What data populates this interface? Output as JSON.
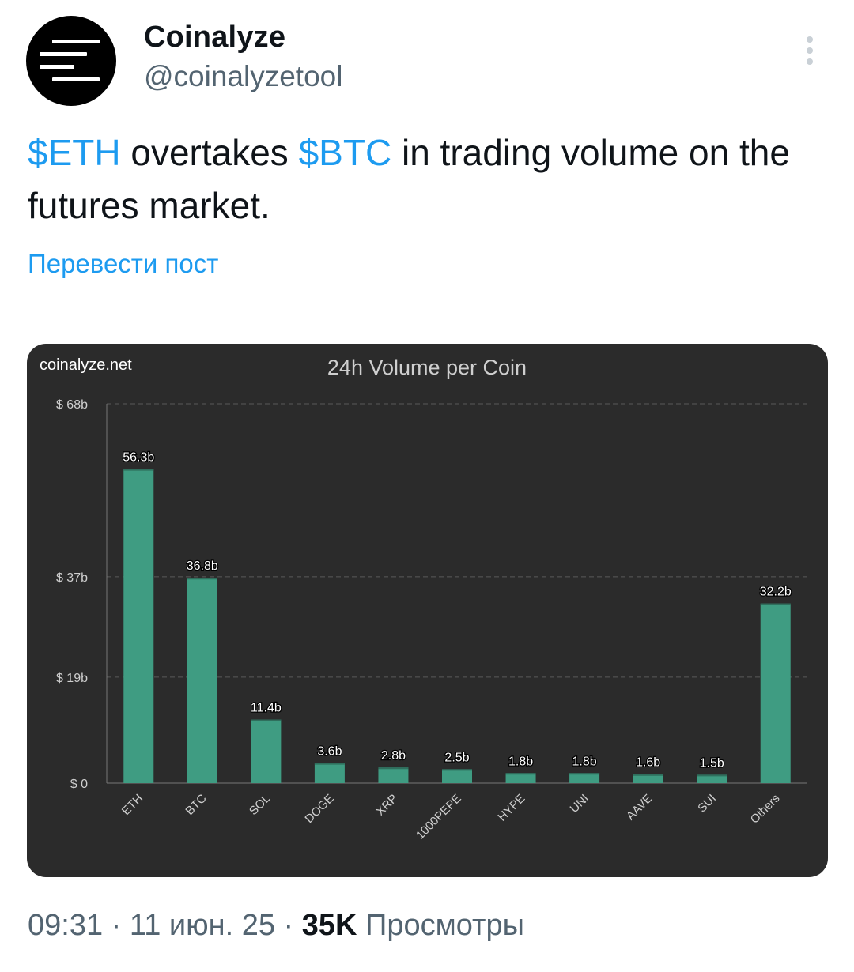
{
  "author": {
    "name": "Coinalyze",
    "handle": "@coinalyzetool",
    "avatar_icon": "coinalyze-logo-icon"
  },
  "tweet": {
    "segments": [
      {
        "text": "$ETH",
        "type": "cashtag"
      },
      {
        "text": " overtakes ",
        "type": "text"
      },
      {
        "text": "$BTC",
        "type": "cashtag"
      },
      {
        "text": " in trading volume on the futures market.",
        "type": "text"
      }
    ],
    "translate_label": "Перевести пост"
  },
  "meta": {
    "time": "09:31",
    "separator": " · ",
    "date": "11 июн. 25",
    "views_count": "35K",
    "views_label": "Просмотры"
  },
  "colors": {
    "accent": "#1d9bf0",
    "bar": "#3f9c82",
    "card_bg": "#2b2b2b"
  },
  "chart_data": {
    "type": "bar",
    "watermark": "coinalyze.net",
    "title": "24h Volume per Coin",
    "categories": [
      "ETH",
      "BTC",
      "SOL",
      "DOGE",
      "XRP",
      "1000PEPE",
      "HYPE",
      "UNI",
      "AAVE",
      "SUI",
      "Others"
    ],
    "values": [
      56.3,
      36.8,
      11.4,
      3.6,
      2.8,
      2.5,
      1.8,
      1.8,
      1.6,
      1.5,
      32.2
    ],
    "value_labels": [
      "56.3b",
      "36.8b",
      "11.4b",
      "3.6b",
      "2.8b",
      "2.5b",
      "1.8b",
      "1.8b",
      "1.6b",
      "1.5b",
      "32.2b"
    ],
    "yticks": [
      0,
      19,
      37,
      68
    ],
    "ytick_labels": [
      "$ 0",
      "$ 19b",
      "$ 37b",
      "$ 68b"
    ],
    "ylim": [
      0,
      68
    ],
    "grid": true,
    "ylabel": "",
    "xlabel": ""
  }
}
